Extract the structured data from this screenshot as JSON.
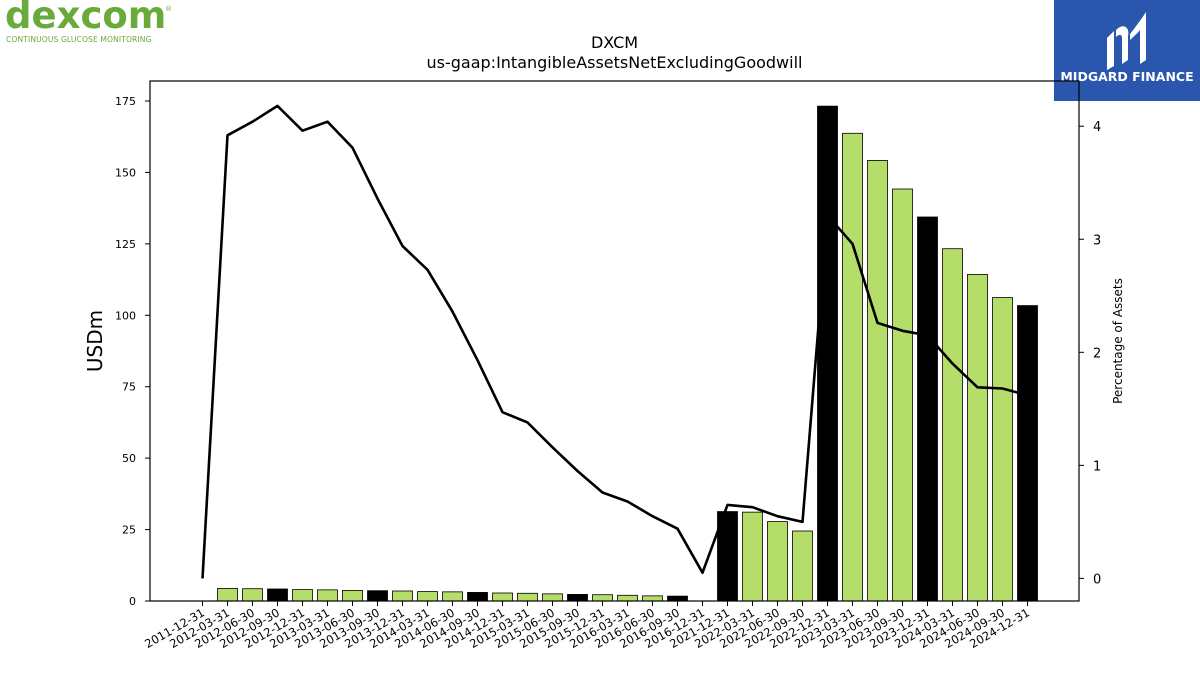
{
  "logo_left": {
    "wordmark": "dexcom",
    "registered": "®",
    "tagline": "CONTINUOUS GLUCOSE MONITORING",
    "color": "#6aaa3a"
  },
  "logo_right": {
    "name": "MIDGARD FINANCE",
    "background": "#2a57ad",
    "icon": "midgard-m-icon"
  },
  "chart_data": {
    "type": "bar",
    "title": "DXCM",
    "subtitle": "us-gaap:IntangibleAssetsNetExcludingGoodwill",
    "ylabel": "USDm",
    "y2label": "Percentage of Assets",
    "ylim": [
      0,
      182
    ],
    "y2lim": [
      -0.2,
      4.4
    ],
    "yticks": [
      0,
      25,
      50,
      75,
      100,
      125,
      150,
      175
    ],
    "y2ticks": [
      0,
      1,
      2,
      3,
      4
    ],
    "grid": false,
    "bar_colors": {
      "quarter": "#b5dd6a",
      "year_end": "#000000",
      "edge": "#000000"
    },
    "line_color": "#000000",
    "categories": [
      "2011-12-31",
      "2012-03-31",
      "2012-06-30",
      "2012-09-30",
      "2012-12-31",
      "2013-03-31",
      "2013-06-30",
      "2013-09-30",
      "2013-12-31",
      "2014-03-31",
      "2014-06-30",
      "2014-09-30",
      "2014-12-31",
      "2015-03-31",
      "2015-06-30",
      "2015-09-30",
      "2015-12-31",
      "2016-03-31",
      "2016-06-30",
      "2016-09-30",
      "2016-12-31",
      "2021-12-31",
      "2022-03-31",
      "2022-06-30",
      "2022-09-30",
      "2022-12-31",
      "2023-03-31",
      "2023-06-30",
      "2023-09-30",
      "2023-12-31",
      "2024-03-31",
      "2024-06-30",
      "2024-09-30",
      "2024-12-31"
    ],
    "series": [
      {
        "kind": "bar",
        "values": [
          0,
          4.4,
          4.3,
          4.2,
          4.0,
          3.9,
          3.7,
          3.6,
          3.5,
          3.3,
          3.2,
          3.0,
          2.8,
          2.7,
          2.5,
          2.3,
          2.2,
          2.0,
          1.8,
          1.7,
          0,
          31.3,
          31.1,
          27.8,
          24.5,
          173.2,
          163.7,
          154.2,
          144.2,
          134.4,
          123.3,
          114.3,
          106.2,
          103.4
        ],
        "year_end": [
          false,
          false,
          false,
          true,
          false,
          false,
          false,
          true,
          false,
          false,
          false,
          true,
          false,
          false,
          false,
          true,
          false,
          false,
          false,
          true,
          false,
          true,
          false,
          false,
          false,
          true,
          false,
          false,
          false,
          true,
          false,
          false,
          false,
          true
        ]
      },
      {
        "kind": "line",
        "axis": "right",
        "values": [
          0,
          3.92,
          4.04,
          4.18,
          3.96,
          4.04,
          3.81,
          3.36,
          2.94,
          2.73,
          2.36,
          1.93,
          1.47,
          1.38,
          1.16,
          0.95,
          0.76,
          0.68,
          0.55,
          0.44,
          0.05,
          0.65,
          0.63,
          0.55,
          0.5,
          3.21,
          2.96,
          2.26,
          2.19,
          2.15,
          1.9,
          1.69,
          1.68,
          1.62
        ]
      }
    ]
  }
}
